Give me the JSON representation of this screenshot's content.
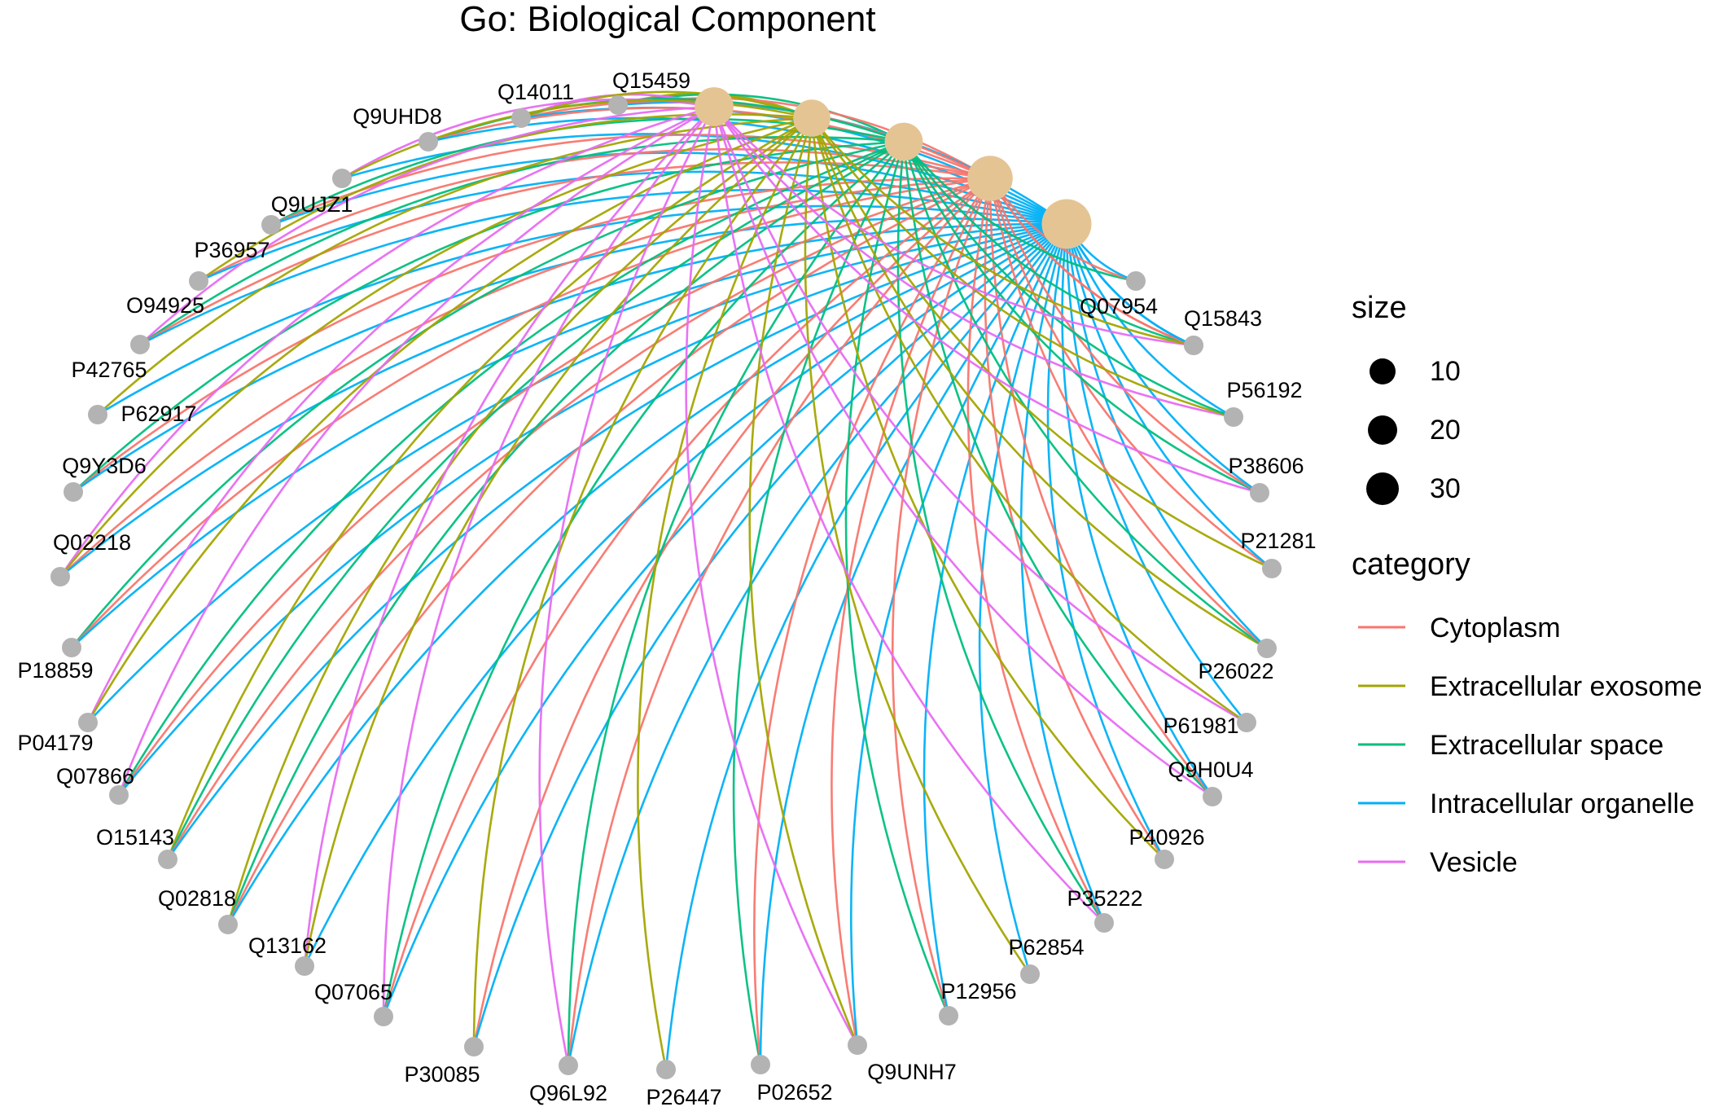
{
  "title": "Go: Biological Component",
  "legend": {
    "size_title": "size",
    "size_items": [
      {
        "label": "10",
        "value": 10
      },
      {
        "label": "20",
        "value": 20
      },
      {
        "label": "30",
        "value": 30
      }
    ],
    "category_title": "category",
    "category_items": [
      {
        "label": "Cytoplasm",
        "color": "#F8766D"
      },
      {
        "label": "Extracellular exosome",
        "color": "#A3A500"
      },
      {
        "label": "Extracellular space",
        "color": "#00BF7D"
      },
      {
        "label": "Intracellular organelle",
        "color": "#00B0F6"
      },
      {
        "label": "Vesicle",
        "color": "#E76BF3"
      }
    ]
  },
  "category_nodes": [
    {
      "name": "Vesicle",
      "size": 18
    },
    {
      "name": "Extracellular exosome",
      "size": 16
    },
    {
      "name": "Extracellular space",
      "size": 17
    },
    {
      "name": "Cytoplasm",
      "size": 25
    },
    {
      "name": "Intracellular organelle",
      "size": 30
    }
  ],
  "gene_nodes": [
    "Q15459",
    "Q14011",
    "Q9UHD8",
    "",
    "Q9UJZ1",
    "P36957",
    "O94925",
    "P42765",
    "P62917",
    "Q9Y3D6",
    "Q02218",
    "P18859",
    "P04179",
    "Q07866",
    "O15143",
    "Q02818",
    "Q13162",
    "Q07065",
    "P30085",
    "Q96L92",
    "P26447",
    "P02652",
    "Q9UNH7",
    "P12956",
    "P62854",
    "P35222",
    "P40926",
    "Q9H0U4",
    "P61981",
    "P26022",
    "P21281",
    "P38606",
    "P56192",
    "Q15843",
    "Q07954"
  ],
  "colors": {
    "category_node": "#E5C494",
    "gene_node": "#B3B3B3",
    "text": "#000000"
  }
}
